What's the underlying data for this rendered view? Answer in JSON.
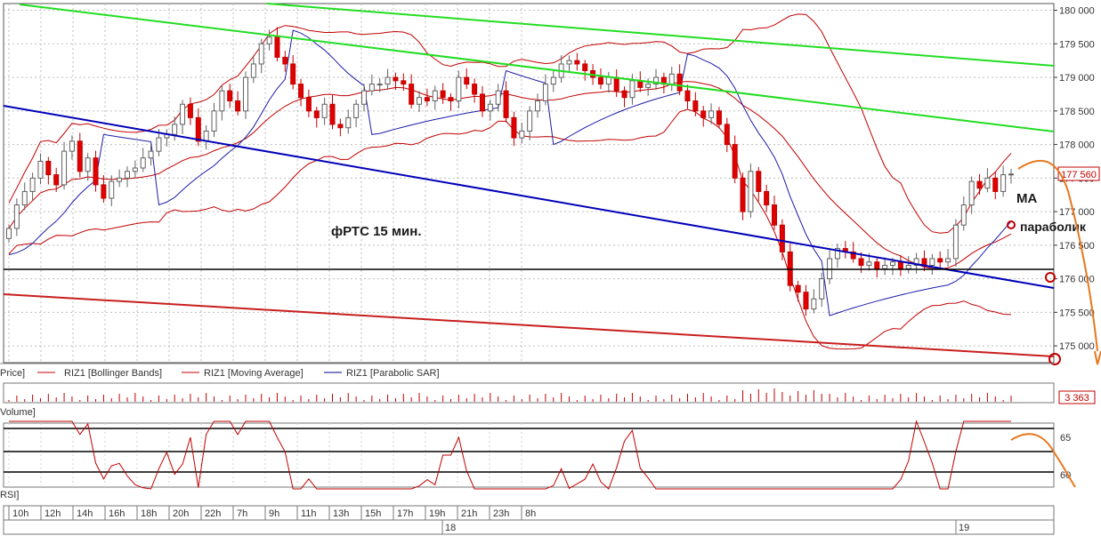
{
  "chart_data": {
    "type": "candlestick",
    "annotation": "фРТС   15 мин.",
    "price_axis": {
      "ticks": [
        "180 000",
        "179 500",
        "179 000",
        "178 500",
        "178 000",
        "177 500",
        "177 000",
        "176 500",
        "176 000",
        "175 500",
        "175 000"
      ],
      "ylim": [
        174750,
        180100
      ],
      "current_price_label": "177 560"
    },
    "indicator_legend": [
      "Price]",
      "RIZ1 [Bollinger Bands]",
      "RIZ1 [Moving Average]",
      "RIZ1 [Parabolic SAR]"
    ],
    "legend_colors": [
      "#c00000",
      "#c00000",
      "#00008b"
    ],
    "volume": {
      "label": "Volume]",
      "value_label": "3 363"
    },
    "rsi": {
      "label": "RSI]",
      "ticks": [
        "65",
        "60"
      ]
    },
    "time_axis": {
      "ticks": [
        "10h",
        "12h",
        "14h",
        "16h",
        "18h",
        "20h",
        "22h",
        "7h",
        "9h",
        "11h",
        "13h",
        "15h",
        "17h",
        "19h",
        "21h",
        "23h",
        "8h"
      ],
      "dates": [
        "18",
        "19"
      ]
    },
    "notes": {
      "ma": "MA",
      "parabolic": "параболик"
    },
    "candles_close": [
      176750,
      177100,
      177300,
      177500,
      177750,
      177550,
      177400,
      177900,
      178050,
      177600,
      177800,
      177400,
      177200,
      177450,
      177500,
      177600,
      177650,
      177800,
      177900,
      178100,
      178150,
      178300,
      178600,
      178400,
      178050,
      178200,
      178500,
      178800,
      178650,
      178500,
      179000,
      179200,
      179500,
      179600,
      179300,
      179200,
      178900,
      178700,
      178500,
      178400,
      178600,
      178300,
      178250,
      178400,
      178600,
      178800,
      178900,
      178900,
      179000,
      178950,
      178900,
      178600,
      178700,
      178650,
      178800,
      178700,
      178650,
      179000,
      178900,
      178750,
      178500,
      178600,
      178800,
      178400,
      178100,
      178200,
      178500,
      178650,
      178900,
      179000,
      179200,
      179250,
      179200,
      179100,
      179000,
      178900,
      179000,
      178800,
      178700,
      178950,
      178850,
      178900,
      179000,
      178900,
      179050,
      178800,
      178650,
      178500,
      178400,
      178500,
      178300,
      178000,
      177500,
      177000,
      177600,
      177300,
      177100,
      176800,
      176400,
      175900,
      175800,
      175550,
      175700,
      176000,
      176300,
      176450,
      176400,
      176300,
      176200,
      176250,
      176150,
      176200,
      176250,
      176150,
      176200,
      176300,
      176200,
      176300,
      176250,
      176300,
      176800,
      177100,
      177450,
      177350,
      177500,
      177300,
      177550,
      177560
    ]
  }
}
